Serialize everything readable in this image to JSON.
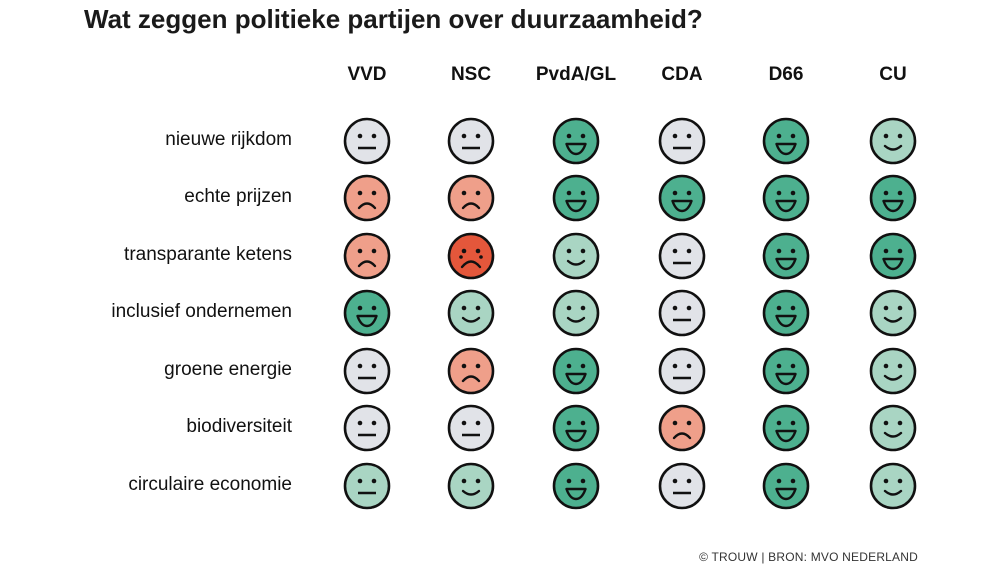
{
  "title": "Wat zeggen politieke partijen over duurzaamheid?",
  "footer": "© TROUW | BRON: MVO NEDERLAND",
  "colors": {
    "neutral": "#e1e3e8",
    "neutral_green": "#a9d5c3",
    "smile": "#a9d5c3",
    "grin": "#4db08f",
    "sad": "#ef9f8a",
    "very_sad": "#e4573b"
  },
  "chart_data": {
    "type": "table",
    "title": "Wat zeggen politieke partijen over duurzaamheid?",
    "columns": [
      "VVD",
      "NSC",
      "PvdA/GL",
      "CDA",
      "D66",
      "CU"
    ],
    "rows": [
      {
        "label": "nieuwe rijkdom",
        "values": [
          "neutral",
          "neutral",
          "grin",
          "neutral",
          "grin",
          "smile"
        ]
      },
      {
        "label": "echte prijzen",
        "values": [
          "sad",
          "sad",
          "grin",
          "grin",
          "grin",
          "grin"
        ]
      },
      {
        "label": "transparante ketens",
        "values": [
          "sad",
          "very_sad",
          "smile",
          "neutral",
          "grin",
          "grin"
        ]
      },
      {
        "label": "inclusief ondernemen",
        "values": [
          "grin",
          "smile",
          "smile",
          "neutral",
          "grin",
          "smile"
        ]
      },
      {
        "label": "groene energie",
        "values": [
          "neutral",
          "sad",
          "grin",
          "neutral",
          "grin",
          "smile"
        ]
      },
      {
        "label": "biodiversiteit",
        "values": [
          "neutral",
          "neutral",
          "grin",
          "sad",
          "grin",
          "smile"
        ]
      },
      {
        "label": "circulaire economie",
        "values": [
          "neutral_green",
          "smile",
          "grin",
          "neutral",
          "grin",
          "smile"
        ]
      }
    ],
    "scale": [
      "very_sad",
      "sad",
      "neutral",
      "neutral_green",
      "smile",
      "grin"
    ]
  }
}
